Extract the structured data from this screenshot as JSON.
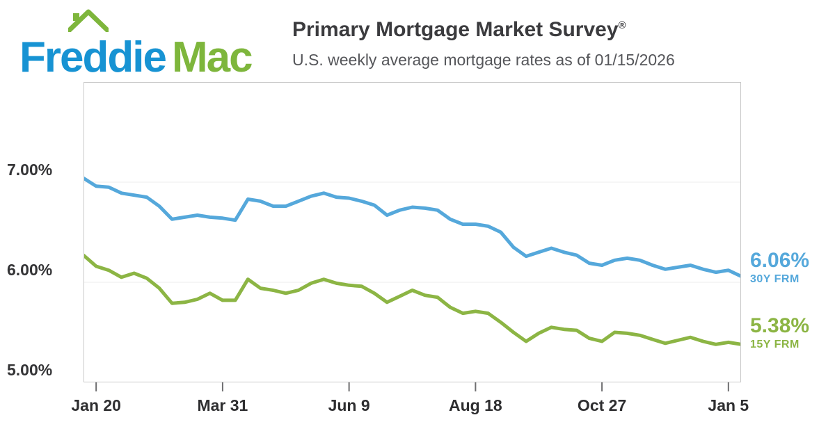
{
  "logo": {
    "word1": "Freddie",
    "word2": "Mac"
  },
  "header": {
    "title": "Primary Mortgage Market Survey",
    "registered": "®",
    "subtitle": "U.S. weekly average mortgage rates as of 01/15/2026"
  },
  "annotations": {
    "frm30": {
      "value": "6.06%",
      "series": "30Y FRM",
      "color": "#55A8DB"
    },
    "frm15": {
      "value": "5.38%",
      "series": "15Y FRM",
      "color": "#8CB544"
    }
  },
  "colors": {
    "logo_blue": "#1793D3",
    "logo_green": "#7EB63C",
    "line_blue": "#55A8DB",
    "line_green": "#8CB544",
    "axis_text": "#2E2E30",
    "gridline": "#ECECEC",
    "plot_border": "#C9C9C9"
  },
  "chart_data": {
    "type": "line",
    "title": "Primary Mortgage Market Survey",
    "subtitle": "U.S. weekly average mortgage rates as of 01/15/2026",
    "as_of_date": "01/15/2026",
    "x_unit": "weekly observations, one year span",
    "ylim": [
      5.0,
      8.0
    ],
    "grid": "horizontal gridlines at 6.00% and 7.00%",
    "legend_position": "right edge, latest value labels",
    "y_ticks": [
      {
        "label": "7.00%",
        "value": 7.0
      },
      {
        "label": "6.00%",
        "value": 6.0
      },
      {
        "label": "5.00%",
        "value": 5.0
      }
    ],
    "x_ticks": [
      {
        "label": "Jan 20",
        "index": 1
      },
      {
        "label": "Mar 31",
        "index": 11
      },
      {
        "label": "Jun 9",
        "index": 21
      },
      {
        "label": "Aug 18",
        "index": 31
      },
      {
        "label": "Oct 27",
        "index": 41
      },
      {
        "label": "Jan 5",
        "index": 51
      }
    ],
    "series": [
      {
        "id": "30y",
        "name": "30Y FRM",
        "color": "#55A8DB",
        "latest_label": "6.06%",
        "values": [
          7.04,
          6.96,
          6.95,
          6.89,
          6.87,
          6.85,
          6.76,
          6.63,
          6.65,
          6.67,
          6.65,
          6.64,
          6.62,
          6.83,
          6.81,
          6.76,
          6.76,
          6.81,
          6.86,
          6.89,
          6.85,
          6.84,
          6.81,
          6.77,
          6.67,
          6.72,
          6.75,
          6.74,
          6.72,
          6.63,
          6.58,
          6.58,
          6.56,
          6.5,
          6.35,
          6.26,
          6.3,
          6.34,
          6.3,
          6.27,
          6.19,
          6.17,
          6.22,
          6.24,
          6.22,
          6.17,
          6.13,
          6.15,
          6.17,
          6.13,
          6.1,
          6.12,
          6.06
        ]
      },
      {
        "id": "15y",
        "name": "15Y FRM",
        "color": "#8CB544",
        "latest_label": "5.38%",
        "values": [
          6.27,
          6.16,
          6.12,
          6.05,
          6.09,
          6.04,
          5.94,
          5.79,
          5.8,
          5.83,
          5.89,
          5.82,
          5.82,
          6.03,
          5.94,
          5.92,
          5.89,
          5.92,
          5.99,
          6.03,
          5.99,
          5.97,
          5.96,
          5.89,
          5.8,
          5.86,
          5.92,
          5.87,
          5.85,
          5.75,
          5.69,
          5.71,
          5.69,
          5.6,
          5.5,
          5.41,
          5.49,
          5.55,
          5.53,
          5.52,
          5.44,
          5.41,
          5.5,
          5.49,
          5.47,
          5.43,
          5.39,
          5.42,
          5.45,
          5.41,
          5.38,
          5.4,
          5.38
        ]
      }
    ]
  }
}
